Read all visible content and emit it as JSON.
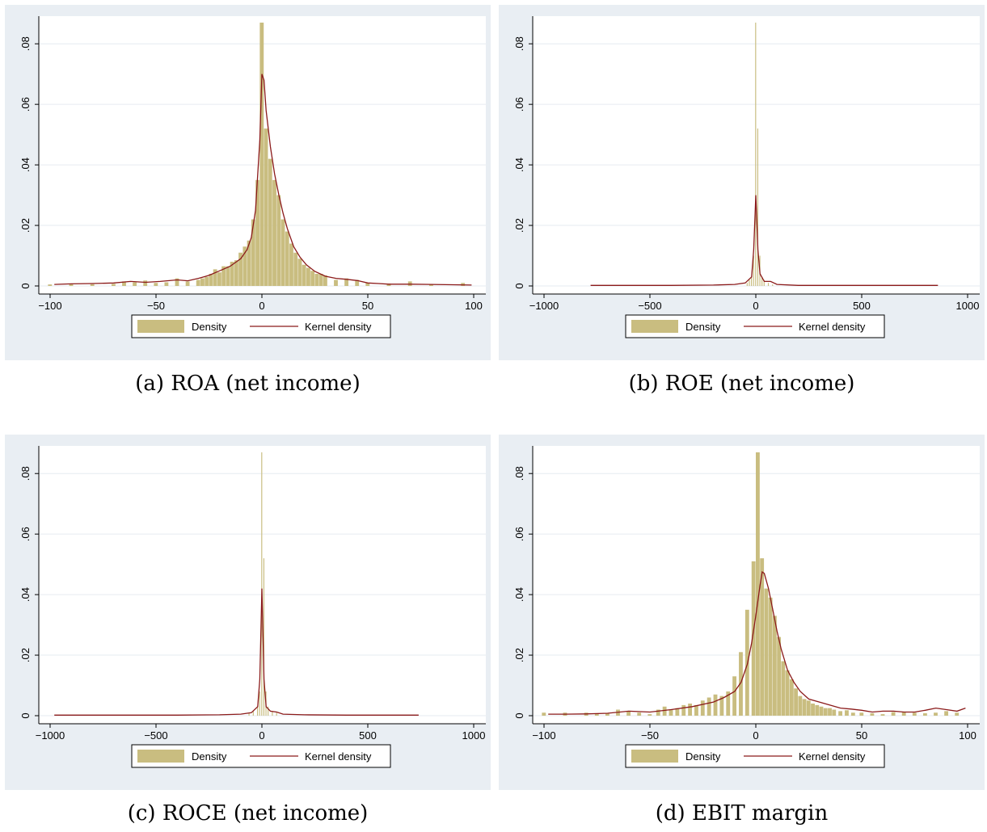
{
  "chart_data": [
    {
      "type": "bar",
      "caption": "(a) ROA (net income)",
      "legend": [
        "Density",
        "Kernel density"
      ],
      "legend_position": "bottom",
      "xlim": [
        -100,
        100
      ],
      "ylim": [
        0,
        0.087
      ],
      "xticks": [
        -100,
        -50,
        0,
        50,
        100
      ],
      "xtick_labels": [
        "−100",
        "−50",
        "0",
        "50",
        "100"
      ],
      "yticks": [
        0,
        0.02,
        0.04,
        0.06,
        0.08
      ],
      "ytick_labels": [
        "0",
        ".02",
        ".04",
        ".06",
        ".08"
      ],
      "grid": true,
      "bins": {
        "x": [
          -100,
          -90,
          -80,
          -70,
          -65,
          -60,
          -55,
          -50,
          -45,
          -40,
          -35,
          -30,
          -28,
          -26,
          -24,
          -22,
          -20,
          -18,
          -16,
          -14,
          -12,
          -10,
          -8,
          -6,
          -4,
          -2,
          0,
          2,
          4,
          6,
          8,
          10,
          12,
          14,
          16,
          18,
          20,
          22,
          24,
          26,
          28,
          30,
          35,
          40,
          45,
          50,
          60,
          70,
          80,
          95
        ],
        "width": 2,
        "density": [
          0.0005,
          0.0008,
          0.0006,
          0.0007,
          0.0015,
          0.0012,
          0.0018,
          0.001,
          0.0012,
          0.0025,
          0.0015,
          0.002,
          0.0025,
          0.003,
          0.004,
          0.0055,
          0.0045,
          0.0065,
          0.0065,
          0.008,
          0.0085,
          0.011,
          0.013,
          0.015,
          0.022,
          0.035,
          0.087,
          0.052,
          0.042,
          0.035,
          0.03,
          0.022,
          0.018,
          0.014,
          0.011,
          0.009,
          0.007,
          0.006,
          0.005,
          0.004,
          0.004,
          0.0035,
          0.002,
          0.0025,
          0.002,
          0.001,
          0.0008,
          0.0015,
          0.0005,
          0.001
        ]
      },
      "kde": {
        "x": [
          -98,
          -90,
          -80,
          -70,
          -62,
          -55,
          -48,
          -40,
          -35,
          -30,
          -25,
          -20,
          -15,
          -10,
          -7,
          -5,
          -3,
          -1,
          0,
          1,
          2,
          4,
          6,
          8,
          10,
          12,
          15,
          18,
          21,
          25,
          30,
          35,
          40,
          45,
          50,
          55,
          60,
          70,
          80,
          90,
          99
        ],
        "y": [
          0.0005,
          0.0007,
          0.0008,
          0.001,
          0.0015,
          0.0012,
          0.0015,
          0.002,
          0.0017,
          0.0025,
          0.0035,
          0.005,
          0.0065,
          0.009,
          0.012,
          0.016,
          0.025,
          0.048,
          0.07,
          0.068,
          0.058,
          0.046,
          0.037,
          0.03,
          0.024,
          0.019,
          0.013,
          0.0095,
          0.007,
          0.0048,
          0.0032,
          0.0025,
          0.0022,
          0.0018,
          0.001,
          0.0008,
          0.0006,
          0.0006,
          0.0005,
          0.0004,
          0.0003
        ]
      }
    },
    {
      "type": "bar",
      "caption": "(b) ROE (net income)",
      "legend": [
        "Density",
        "Kernel density"
      ],
      "legend_position": "bottom",
      "xlim": [
        -1000,
        1000
      ],
      "ylim": [
        0,
        0.087
      ],
      "xticks": [
        -1000,
        -500,
        0,
        500,
        1000
      ],
      "xtick_labels": [
        "−1000",
        "−500",
        "0",
        "500",
        "1000"
      ],
      "yticks": [
        0,
        0.02,
        0.04,
        0.06,
        0.08
      ],
      "ytick_labels": [
        "0",
        ".02",
        ".04",
        ".06",
        ".08"
      ],
      "grid": true,
      "bins": {
        "x": [
          -40,
          -30,
          -20,
          -10,
          0,
          10,
          20,
          30,
          40,
          60,
          80
        ],
        "width": 6,
        "density": [
          0.001,
          0.002,
          0.003,
          0.01,
          0.087,
          0.052,
          0.01,
          0.003,
          0.002,
          0.001,
          0.0005
        ]
      },
      "kde": {
        "x": [
          -780,
          -600,
          -400,
          -200,
          -100,
          -50,
          -20,
          -10,
          0,
          10,
          20,
          40,
          70,
          100,
          200,
          400,
          600,
          860
        ],
        "y": [
          0.0002,
          0.0002,
          0.0002,
          0.0003,
          0.0005,
          0.001,
          0.003,
          0.012,
          0.03,
          0.012,
          0.004,
          0.0015,
          0.0015,
          0.0005,
          0.0002,
          0.0002,
          0.0002,
          0.0002
        ]
      }
    },
    {
      "type": "bar",
      "caption": "(c) ROCE (net income)",
      "legend": [
        "Density",
        "Kernel density"
      ],
      "legend_position": "bottom",
      "xlim": [
        -1000,
        1000
      ],
      "ylim": [
        0,
        0.087
      ],
      "xticks": [
        -1000,
        -500,
        0,
        500,
        1000
      ],
      "xtick_labels": [
        "−1000",
        "−500",
        "0",
        "500",
        "1000"
      ],
      "yticks": [
        0,
        0.02,
        0.04,
        0.06,
        0.08
      ],
      "ytick_labels": [
        "0",
        ".02",
        ".04",
        ".06",
        ".08"
      ],
      "grid": true,
      "bins": {
        "x": [
          -60,
          -40,
          -20,
          -10,
          0,
          10,
          20,
          30,
          50,
          70
        ],
        "width": 6,
        "density": [
          0.001,
          0.0015,
          0.003,
          0.008,
          0.087,
          0.052,
          0.008,
          0.003,
          0.0015,
          0.001
        ]
      },
      "kde": {
        "x": [
          -980,
          -800,
          -600,
          -400,
          -200,
          -100,
          -50,
          -20,
          -10,
          0,
          10,
          20,
          40,
          70,
          100,
          200,
          400,
          600,
          740
        ],
        "y": [
          0.0002,
          0.0002,
          0.0002,
          0.0002,
          0.0003,
          0.0005,
          0.001,
          0.003,
          0.012,
          0.042,
          0.012,
          0.003,
          0.0015,
          0.0012,
          0.0005,
          0.0003,
          0.0002,
          0.0002,
          0.0002
        ]
      }
    },
    {
      "type": "bar",
      "caption": "(d) EBIT margin",
      "legend": [
        "Density",
        "Kernel density"
      ],
      "legend_position": "bottom",
      "xlim": [
        -100,
        100
      ],
      "ylim": [
        0,
        0.087
      ],
      "xticks": [
        -100,
        -50,
        0,
        50,
        100
      ],
      "xtick_labels": [
        "−100",
        "−50",
        "0",
        "50",
        "100"
      ],
      "yticks": [
        0,
        0.02,
        0.04,
        0.06,
        0.08
      ],
      "ytick_labels": [
        "0",
        ".02",
        ".04",
        ".06",
        ".08"
      ],
      "grid": true,
      "bins": {
        "x": [
          -100,
          -90,
          -80,
          -75,
          -70,
          -65,
          -60,
          -55,
          -50,
          -46,
          -43,
          -40,
          -37,
          -34,
          -31,
          -28,
          -25,
          -22,
          -19,
          -16,
          -13,
          -10,
          -7,
          -4,
          -1,
          1,
          3,
          5,
          7,
          9,
          11,
          13,
          15,
          17,
          19,
          21,
          23,
          25,
          27,
          29,
          31,
          33,
          35,
          37,
          40,
          43,
          46,
          50,
          55,
          60,
          65,
          70,
          75,
          80,
          85,
          90,
          95
        ],
        "width": 2,
        "density": [
          0.001,
          0.001,
          0.001,
          0.0008,
          0.0008,
          0.002,
          0.0015,
          0.001,
          0.0005,
          0.002,
          0.003,
          0.002,
          0.0025,
          0.0035,
          0.004,
          0.0035,
          0.005,
          0.006,
          0.007,
          0.0065,
          0.008,
          0.013,
          0.021,
          0.035,
          0.051,
          0.087,
          0.052,
          0.042,
          0.039,
          0.033,
          0.026,
          0.018,
          0.015,
          0.012,
          0.009,
          0.0065,
          0.0055,
          0.005,
          0.004,
          0.0035,
          0.003,
          0.0025,
          0.0025,
          0.002,
          0.0015,
          0.0018,
          0.001,
          0.001,
          0.0008,
          0.0005,
          0.0012,
          0.0012,
          0.001,
          0.0008,
          0.001,
          0.0015,
          0.001
        ]
      },
      "kde": {
        "x": [
          -98,
          -90,
          -80,
          -70,
          -60,
          -50,
          -40,
          -30,
          -20,
          -15,
          -10,
          -7,
          -4,
          -2,
          0,
          2,
          3,
          4,
          6,
          8,
          10,
          12,
          15,
          18,
          21,
          25,
          30,
          35,
          40,
          45,
          50,
          55,
          60,
          65,
          70,
          75,
          80,
          85,
          90,
          95,
          99
        ],
        "y": [
          0.0005,
          0.0005,
          0.0006,
          0.0008,
          0.0015,
          0.0012,
          0.002,
          0.003,
          0.0045,
          0.006,
          0.008,
          0.011,
          0.017,
          0.024,
          0.033,
          0.043,
          0.0475,
          0.047,
          0.042,
          0.035,
          0.028,
          0.022,
          0.015,
          0.011,
          0.008,
          0.0055,
          0.0045,
          0.0035,
          0.0025,
          0.0022,
          0.0018,
          0.0012,
          0.0015,
          0.0015,
          0.0012,
          0.0012,
          0.0018,
          0.0025,
          0.002,
          0.0015,
          0.0025
        ]
      }
    }
  ]
}
